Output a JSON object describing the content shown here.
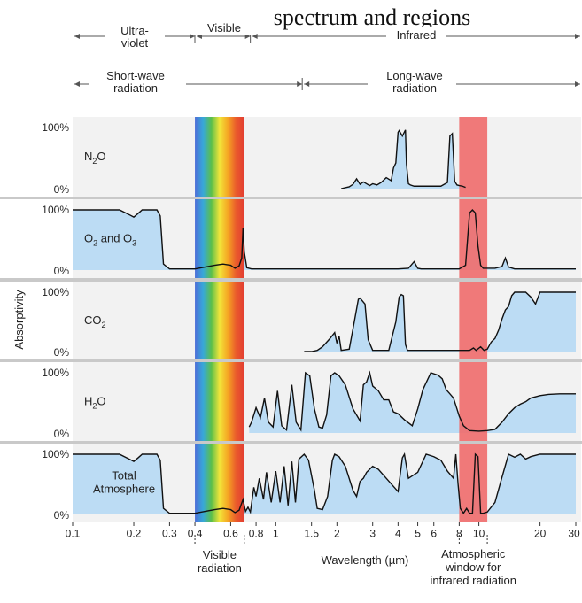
{
  "page": {
    "caption_fragment": "spectrum and regions"
  },
  "bands": {
    "ultraviolet": "Ultra-\nviolet",
    "visible": "Visible",
    "infrared": "Infrared",
    "shortwave": "Short-wave\nradiation",
    "longwave": "Long-wave\nradiation"
  },
  "colors": {
    "panel_bg": "#f2f2f2",
    "absorb_fill": "#bcdcf4",
    "infrared_window": "#ef6b6b",
    "divider": "#c9c9c9",
    "line": "#111111",
    "spectrum": [
      "#4d6fd8",
      "#37a8d8",
      "#5bbf4a",
      "#f2e53a",
      "#f5a623",
      "#ea5b2c",
      "#e23c32"
    ]
  },
  "bottom_labels": {
    "visible_radiation": "Visible\nradiation",
    "wavelength_axis": "Wavelength (µm)",
    "atmospheric_window": "Atmospheric\nwindow for\ninfrared radiation"
  },
  "chart_data": {
    "type": "area",
    "ylabel": "Absorptivity",
    "xlabel": "Wavelength (µm)",
    "xscale": "log",
    "xlim": [
      0.1,
      30
    ],
    "ylim": [
      0,
      100
    ],
    "x_ticks": [
      "0.1",
      "0.2",
      "0.3",
      "0.4",
      "0.6",
      "0.8",
      "1",
      "1.5",
      "2",
      "3",
      "4",
      "5",
      "6",
      "8",
      "10",
      "20",
      "30"
    ],
    "x_tick_values": [
      0.1,
      0.2,
      0.3,
      0.4,
      0.6,
      0.8,
      1,
      1.5,
      2,
      3,
      4,
      5,
      6,
      8,
      10,
      20,
      30
    ],
    "y_ticks": [
      "100%",
      "0%"
    ],
    "visible_band": [
      0.4,
      0.7
    ],
    "atmospheric_window": [
      8,
      11
    ],
    "panels": [
      {
        "name": "N2O",
        "x": [
          0.1,
          2.1,
          2.3,
          2.4,
          2.5,
          2.6,
          2.7,
          2.9,
          3.0,
          3.15,
          3.3,
          3.5,
          3.7,
          3.8,
          3.9,
          4.0,
          4.05,
          4.2,
          4.35,
          4.4,
          4.5,
          4.6,
          4.8,
          5.0,
          5.5,
          6.0,
          6.5,
          7.0,
          7.2,
          7.4,
          7.6,
          7.8,
          8.0,
          8.3,
          8.6
        ],
        "y": [
          null,
          0,
          3,
          7,
          16,
          7,
          11,
          5,
          8,
          6,
          10,
          18,
          13,
          34,
          42,
          92,
          95,
          86,
          96,
          40,
          8,
          6,
          4,
          4,
          4,
          4,
          4,
          10,
          86,
          90,
          12,
          6,
          5,
          4,
          2
        ]
      },
      {
        "name": "O2 and O3",
        "x": [
          0.1,
          0.15,
          0.17,
          0.19,
          0.2,
          0.21,
          0.22,
          0.24,
          0.26,
          0.27,
          0.28,
          0.3,
          0.34,
          0.4,
          0.5,
          0.55,
          0.6,
          0.63,
          0.66,
          0.68,
          0.69,
          0.7,
          0.72,
          0.76,
          0.9,
          1,
          2,
          3,
          4,
          4.5,
          4.8,
          5.0,
          5.2,
          6,
          8,
          8.6,
          9.0,
          9.3,
          9.6,
          9.9,
          10.2,
          10.5,
          12,
          13,
          13.5,
          14,
          15,
          20,
          30
        ],
        "y": [
          100,
          100,
          100,
          92,
          88,
          94,
          100,
          100,
          100,
          90,
          10,
          2,
          2,
          2,
          8,
          10,
          8,
          3,
          7,
          20,
          70,
          30,
          4,
          2,
          2,
          2,
          2,
          2,
          2,
          3,
          14,
          3,
          2,
          2,
          2,
          8,
          95,
          100,
          95,
          40,
          8,
          3,
          3,
          6,
          20,
          5,
          2,
          2,
          2
        ]
      },
      {
        "name": "CO2",
        "x": [
          1.38,
          1.5,
          1.6,
          1.7,
          1.85,
          1.95,
          2.0,
          2.05,
          2.1,
          2.3,
          2.45,
          2.55,
          2.6,
          2.75,
          2.85,
          3.0,
          3.3,
          3.6,
          3.9,
          4.05,
          4.15,
          4.25,
          4.35,
          4.45,
          4.6,
          5.0,
          6,
          8,
          9.0,
          9.4,
          9.7,
          10.2,
          10.6,
          11.0,
          11.5,
          12.0,
          12.5,
          13.0,
          13.5,
          14.0,
          14.5,
          15.0,
          16.0,
          17.0,
          18.0,
          19.0,
          20,
          30
        ],
        "y": [
          0,
          0,
          2,
          8,
          22,
          32,
          14,
          26,
          2,
          4,
          55,
          88,
          90,
          80,
          20,
          2,
          2,
          2,
          50,
          92,
          96,
          94,
          12,
          2,
          2,
          2,
          2,
          2,
          2,
          6,
          2,
          8,
          2,
          4,
          16,
          22,
          36,
          55,
          70,
          76,
          94,
          100,
          100,
          100,
          92,
          80,
          100,
          100
        ]
      },
      {
        "name": "H2O",
        "x": [
          0.74,
          0.76,
          0.8,
          0.84,
          0.88,
          0.92,
          0.97,
          1.02,
          1.07,
          1.13,
          1.2,
          1.26,
          1.33,
          1.4,
          1.47,
          1.55,
          1.63,
          1.7,
          1.78,
          1.87,
          1.95,
          2.05,
          2.2,
          2.4,
          2.6,
          2.7,
          2.8,
          2.9,
          3.0,
          3.2,
          3.4,
          3.6,
          3.8,
          4.0,
          4.3,
          4.7,
          5.0,
          5.3,
          5.8,
          6.3,
          6.6,
          6.9,
          7.2,
          7.5,
          7.8,
          8.0,
          8.4,
          9,
          10,
          11,
          12,
          13,
          14,
          15,
          16,
          17,
          18,
          20,
          22,
          25,
          30
        ],
        "y": [
          10,
          18,
          42,
          25,
          58,
          18,
          10,
          70,
          12,
          5,
          80,
          18,
          5,
          100,
          95,
          40,
          10,
          8,
          30,
          95,
          100,
          95,
          80,
          40,
          20,
          80,
          85,
          100,
          78,
          70,
          55,
          55,
          35,
          32,
          22,
          12,
          40,
          72,
          100,
          96,
          90,
          72,
          65,
          58,
          40,
          28,
          12,
          4,
          3,
          4,
          6,
          18,
          32,
          42,
          48,
          52,
          58,
          62,
          64,
          65,
          65
        ]
      },
      {
        "name": "Total Atmosphere",
        "x": [
          0.1,
          0.15,
          0.17,
          0.19,
          0.2,
          0.21,
          0.22,
          0.24,
          0.26,
          0.27,
          0.28,
          0.3,
          0.34,
          0.4,
          0.5,
          0.55,
          0.6,
          0.63,
          0.66,
          0.69,
          0.71,
          0.73,
          0.75,
          0.78,
          0.8,
          0.83,
          0.87,
          0.9,
          0.95,
          1.0,
          1.05,
          1.1,
          1.15,
          1.2,
          1.25,
          1.3,
          1.38,
          1.45,
          1.55,
          1.6,
          1.7,
          1.8,
          1.9,
          1.95,
          2.05,
          2.2,
          2.4,
          2.5,
          2.6,
          2.7,
          2.8,
          3.0,
          3.2,
          3.5,
          4.0,
          4.2,
          4.3,
          4.5,
          5.0,
          5.5,
          6.0,
          6.5,
          7.0,
          7.5,
          7.7,
          7.9,
          8.1,
          8.4,
          8.7,
          9.0,
          9.3,
          9.6,
          9.9,
          10.2,
          10.5,
          11,
          12,
          13,
          14,
          15,
          16,
          17,
          18,
          20,
          25,
          30
        ],
        "y": [
          100,
          100,
          100,
          92,
          88,
          94,
          100,
          100,
          100,
          90,
          10,
          2,
          2,
          2,
          8,
          10,
          8,
          3,
          7,
          25,
          5,
          12,
          4,
          45,
          30,
          60,
          25,
          70,
          20,
          72,
          20,
          80,
          15,
          88,
          20,
          92,
          100,
          90,
          40,
          10,
          8,
          30,
          90,
          100,
          96,
          80,
          40,
          30,
          55,
          60,
          70,
          80,
          75,
          60,
          38,
          94,
          100,
          60,
          70,
          100,
          96,
          90,
          72,
          60,
          100,
          50,
          10,
          2,
          10,
          2,
          2,
          100,
          96,
          2,
          2,
          4,
          20,
          62,
          100,
          95,
          100,
          92,
          96,
          100,
          100,
          100
        ]
      }
    ]
  }
}
